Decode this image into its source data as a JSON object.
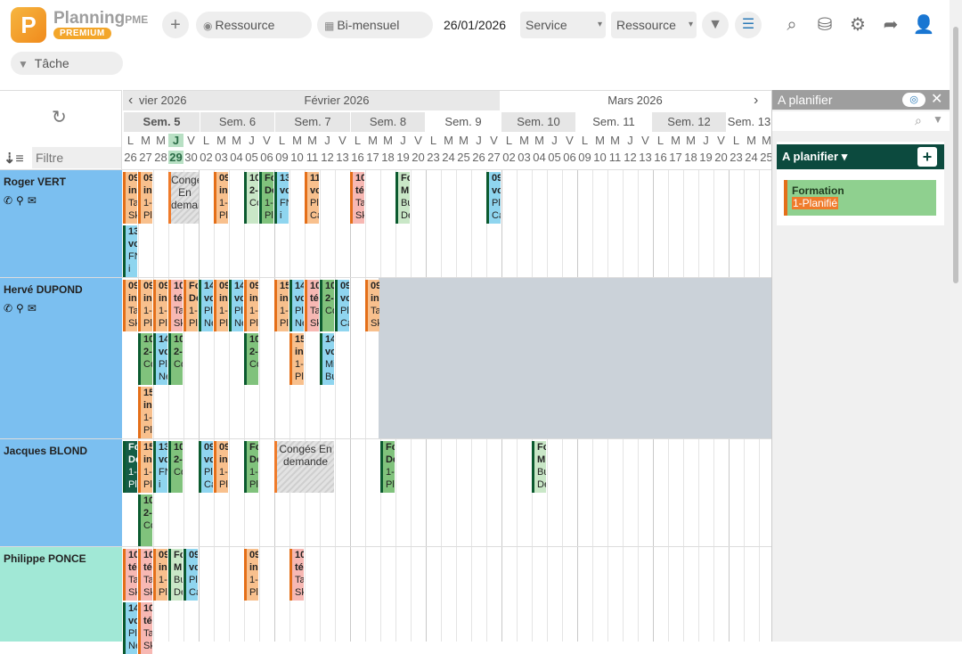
{
  "app": {
    "logo_letter": "P",
    "name": "Planning",
    "name_suffix": "PME",
    "edition": "PREMIUM"
  },
  "toolbar": {
    "add_label": "+",
    "resource_placeholder": "Ressource",
    "period_label": "Bi-mensuel",
    "date_value": "26/01/2026",
    "service_label": "Service",
    "resource_select_label": "Ressource",
    "task_placeholder": "Tâche"
  },
  "left_header": {
    "filter_placeholder": "Filtre"
  },
  "calendar": {
    "months": [
      "vier 2026",
      "Février 2026",
      "Mars 2026"
    ],
    "weeks": [
      "Sem. 5",
      "Sem. 6",
      "Sem. 7",
      "Sem. 8",
      "Sem. 9",
      "Sem. 10",
      "Sem. 11",
      "Sem. 12",
      "Sem. 13"
    ],
    "day_letters": [
      "L",
      "M",
      "M",
      "J",
      "V",
      "L",
      "M",
      "M",
      "J",
      "V",
      "L",
      "M",
      "M",
      "J",
      "V",
      "L",
      "M",
      "M",
      "J",
      "V",
      "L",
      "M",
      "M",
      "J",
      "V",
      "L",
      "M",
      "M",
      "J",
      "V",
      "L",
      "M",
      "M",
      "J",
      "V",
      "L",
      "M",
      "M",
      "J",
      "V",
      "L",
      "M",
      "M"
    ],
    "day_numbers": [
      "26",
      "27",
      "28",
      "29",
      "30",
      "02",
      "03",
      "04",
      "05",
      "06",
      "09",
      "10",
      "11",
      "12",
      "13",
      "16",
      "17",
      "18",
      "19",
      "20",
      "23",
      "24",
      "25",
      "26",
      "27",
      "02",
      "03",
      "04",
      "05",
      "06",
      "09",
      "10",
      "11",
      "12",
      "13",
      "16",
      "17",
      "18",
      "19",
      "20",
      "23",
      "24",
      "25"
    ],
    "today_index": 3
  },
  "resources": [
    {
      "name": "Roger VERT",
      "contacts": "✆⚲✉"
    },
    {
      "name": "Hervé DUPOND",
      "contacts": "✆⚲✉"
    },
    {
      "name": "Jacques BLOND",
      "contacts": ""
    },
    {
      "name": "Philippe PONCE",
      "contacts": ""
    }
  ],
  "leave": {
    "roger": "Congé En demande",
    "jacques": "Congés En demande"
  },
  "tasks": [
    {
      "l1": "09",
      "l2": "in",
      "l3": "Ta",
      "l4": "Sk"
    },
    {
      "l1": "09",
      "l2": "in",
      "l3": "1-",
      "l4": "Pl"
    },
    {
      "l1": "10",
      "l2": "2-",
      "l3": "Co",
      "l4": ""
    },
    {
      "l1": "Fo",
      "l2": "De",
      "l3": "1-",
      "l4": "Pl"
    },
    {
      "l1": "13",
      "l2": "vo",
      "l3": "FN",
      "l4": "i"
    },
    {
      "l1": "11",
      "l2": "vo",
      "l3": "Pl",
      "l4": "Ca"
    },
    {
      "l1": "10",
      "l2": "té",
      "l3": "Ta",
      "l4": "Sk"
    },
    {
      "l1": "Fo",
      "l2": "M",
      "l3": "Bu",
      "l4": "De"
    },
    {
      "l1": "09",
      "l2": "vo",
      "l3": "Pl",
      "l4": "Ca"
    },
    {
      "l1": "13",
      "l2": "vo",
      "l3": "FN",
      "l4": "i"
    },
    {
      "l1": "15",
      "l2": "in",
      "l3": "1-",
      "l4": "Pl"
    },
    {
      "l1": "14",
      "l2": "vo",
      "l3": "Pl",
      "l4": "Ne"
    },
    {
      "l1": "14",
      "l2": "vo",
      "l3": "Mi",
      "l4": "Bu"
    }
  ],
  "right_panel": {
    "title": "A planifier",
    "card_title": "A planifier",
    "task_name": "Formation",
    "task_status": "1-Planifié"
  },
  "colors": {
    "resource_blue": "#7bbff0",
    "resource_teal": "#a1e8d6",
    "accent_orange": "#ef7b2b",
    "accent_green": "#0c4a3e"
  }
}
